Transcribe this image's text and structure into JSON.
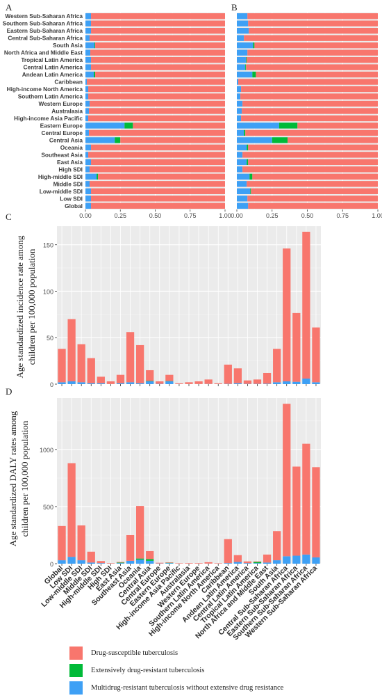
{
  "panels": {
    "a": "A",
    "b": "B",
    "c": "C",
    "d": "D"
  },
  "legend": [
    {
      "label": "Drug-susceptible tuberculosis",
      "color": "#f8766d"
    },
    {
      "label": "Extensively drug-resistant tuberculosis",
      "color": "#00ba38"
    },
    {
      "label": "Multidrug-resistant tuberculosis without extensive drug resistance",
      "color": "#3ea0f5"
    }
  ],
  "chart_data": [
    {
      "id": "A",
      "type": "bar",
      "orientation": "horizontal",
      "stacked": true,
      "categories": [
        "Western Sub-Saharan Africa",
        "Southern Sub-Saharan Africa",
        "Eastern Sub-Saharan Africa",
        "Central Sub-Saharan Africa",
        "South Asia",
        "North Africa and Middle East",
        "Tropical Latin America",
        "Central Latin America",
        "Andean Latin America",
        "Caribbean",
        "High-income North America",
        "Southern Latin America",
        "Western Europe",
        "Australasia",
        "High-income Asia Pacific",
        "Eastern Europe",
        "Central Europe",
        "Central Asia",
        "Oceania",
        "Southeast Asia",
        "East Asia",
        "High SDI",
        "High-middle SDI",
        "Middle SDI",
        "Low-middle SDI",
        "Low SDI",
        "Global"
      ],
      "series": [
        {
          "name": "Multidrug-resistant tuberculosis without extensive drug resistance",
          "values": [
            0.04,
            0.04,
            0.04,
            0.03,
            0.065,
            0.035,
            0.04,
            0.04,
            0.06,
            0.01,
            0.02,
            0.02,
            0.03,
            0.025,
            0.02,
            0.28,
            0.025,
            0.21,
            0.04,
            0.02,
            0.04,
            0.03,
            0.08,
            0.03,
            0.04,
            0.04,
            0.04
          ]
        },
        {
          "name": "Extensively drug-resistant tuberculosis",
          "values": [
            0,
            0,
            0,
            0,
            0.005,
            0,
            0,
            0,
            0.01,
            0,
            0,
            0,
            0,
            0,
            0,
            0.06,
            0,
            0.04,
            0,
            0,
            0,
            0,
            0.01,
            0,
            0,
            0,
            0
          ]
        },
        {
          "name": "Drug-susceptible tuberculosis",
          "values": [
            0.96,
            0.96,
            0.96,
            0.97,
            0.93,
            0.965,
            0.96,
            0.96,
            0.93,
            0.99,
            0.98,
            0.98,
            0.97,
            0.975,
            0.98,
            0.66,
            0.975,
            0.75,
            0.96,
            0.98,
            0.96,
            0.97,
            0.91,
            0.97,
            0.96,
            0.96,
            0.96
          ]
        }
      ],
      "x_ticks": [
        "0.00",
        "0.25",
        "0.50",
        "0.75",
        "1.00"
      ],
      "xlim": [
        0,
        1
      ]
    },
    {
      "id": "B",
      "type": "bar",
      "orientation": "horizontal",
      "stacked": true,
      "categories": [
        "Western Sub-Saharan Africa",
        "Southern Sub-Saharan Africa",
        "Eastern Sub-Saharan Africa",
        "Central Sub-Saharan Africa",
        "South Asia",
        "North Africa and Middle East",
        "Tropical Latin America",
        "Central Latin America",
        "Andean Latin America",
        "Caribbean",
        "High-income North America",
        "Southern Latin America",
        "Western Europe",
        "Australasia",
        "High-income Asia Pacific",
        "Eastern Europe",
        "Central Europe",
        "Central Asia",
        "Oceania",
        "Southeast Asia",
        "East Asia",
        "High SDI",
        "High-middle SDI",
        "Middle SDI",
        "Low-middle SDI",
        "Low SDI",
        "Global"
      ],
      "series": [
        {
          "name": "Multidrug-resistant tuberculosis without extensive drug resistance",
          "values": [
            0.075,
            0.08,
            0.085,
            0.05,
            0.115,
            0.075,
            0.065,
            0.06,
            0.11,
            0.01,
            0.03,
            0.025,
            0.04,
            0.035,
            0.03,
            0.3,
            0.05,
            0.25,
            0.07,
            0.04,
            0.07,
            0.04,
            0.09,
            0.07,
            0.095,
            0.075,
            0.08
          ]
        },
        {
          "name": "Extensively drug-resistant tuberculosis",
          "values": [
            0,
            0,
            0,
            0,
            0.01,
            0,
            0.005,
            0.005,
            0.025,
            0,
            0,
            0,
            0,
            0,
            0,
            0.13,
            0.01,
            0.11,
            0.01,
            0,
            0.01,
            0,
            0.02,
            0,
            0.005,
            0,
            0
          ]
        },
        {
          "name": "Drug-susceptible tuberculosis",
          "values": [
            0.925,
            0.92,
            0.915,
            0.95,
            0.875,
            0.925,
            0.93,
            0.935,
            0.865,
            0.99,
            0.97,
            0.975,
            0.96,
            0.965,
            0.97,
            0.57,
            0.94,
            0.64,
            0.92,
            0.96,
            0.92,
            0.96,
            0.89,
            0.93,
            0.9,
            0.925,
            0.92
          ]
        }
      ],
      "x_ticks": [
        "0.00",
        "0.25",
        "0.50",
        "0.75",
        "1.00"
      ],
      "xlim": [
        0,
        1
      ]
    },
    {
      "id": "C",
      "type": "bar",
      "stacked": true,
      "categories": [
        "Global",
        "Low SDI",
        "Low-middle SDI",
        "Middle SDI",
        "High-middle SDI",
        "High SDI",
        "East Asia",
        "Southeast Asia",
        "Oceania",
        "Central Asia",
        "Central Europe",
        "Eastern Europe",
        "High-income Asia Pacific",
        "Australasia",
        "Western Europe",
        "Southern Latin America",
        "High-income North America",
        "Caribbean",
        "Andean Latin America",
        "Central Latin America",
        "Tropical Latin America",
        "North Africa and Middle East",
        "South Asia",
        "Central Sub-Saharan Africa",
        "Eastern Sub-Saharan Africa",
        "Southern Sub-Saharan Africa",
        "Western Sub-Saharan Africa"
      ],
      "series": [
        {
          "name": "Multidrug-resistant tuberculosis without extensive drug resistance",
          "values": [
            2,
            3,
            2,
            1,
            1,
            0.1,
            1,
            2,
            1,
            3,
            0.3,
            3,
            0.1,
            0.1,
            0.1,
            0.2,
            0.1,
            0.3,
            1,
            0.3,
            0.3,
            0.5,
            2,
            3,
            2.5,
            6,
            2
          ]
        },
        {
          "name": "Extensively drug-resistant tuberculosis",
          "values": [
            0,
            0,
            0,
            0,
            0,
            0,
            0,
            0,
            0,
            0.4,
            0,
            0.3,
            0,
            0,
            0,
            0,
            0,
            0,
            0,
            0,
            0,
            0,
            0,
            0,
            0,
            0,
            0
          ]
        },
        {
          "name": "Drug-susceptible tuberculosis",
          "values": [
            36,
            67,
            41,
            27,
            7,
            2.9,
            9,
            54,
            41,
            11.6,
            2.7,
            6.7,
            0.9,
            1.9,
            2.9,
            4.8,
            0.9,
            20.7,
            16,
            3.7,
            4.7,
            11.5,
            36,
            143,
            74,
            158,
            59
          ]
        }
      ],
      "ylabel": "Age standardized incidence rate among children per 100,000 population",
      "y_ticks": [
        "0",
        "50",
        "100",
        "150"
      ],
      "ylim": [
        0,
        170
      ]
    },
    {
      "id": "D",
      "type": "bar",
      "stacked": true,
      "categories": [
        "Global",
        "Low SDI",
        "Low-middle SDI",
        "Middle SDI",
        "High-middle SDI",
        "High SDI",
        "East Asia",
        "Southeast Asia",
        "Oceania",
        "Central Asia",
        "Central Europe",
        "Eastern Europe",
        "High-income Asia Pacific",
        "Australasia",
        "Western Europe",
        "Southern Latin America",
        "High-income North America",
        "Caribbean",
        "Andean Latin America",
        "Central Latin America",
        "Tropical Latin America",
        "North Africa and Middle East",
        "South Asia",
        "Central Sub-Saharan Africa",
        "Eastern Sub-Saharan Africa",
        "Southern Sub-Saharan Africa",
        "Western Sub-Saharan Africa"
      ],
      "series": [
        {
          "name": "Multidrug-resistant tuberculosis without extensive drug resistance",
          "values": [
            30,
            60,
            30,
            10,
            5,
            1,
            5,
            25,
            35,
            25,
            2,
            5,
            0.5,
            0.5,
            0.5,
            1,
            0.5,
            5,
            15,
            5,
            5,
            10,
            30,
            65,
            70,
            80,
            55
          ]
        },
        {
          "name": "Extensively drug-resistant tuberculosis",
          "values": [
            0,
            0,
            0,
            0,
            0,
            0,
            5,
            0,
            10,
            15,
            0,
            3,
            0,
            0,
            0,
            0,
            0,
            0,
            0,
            0,
            10,
            0,
            0,
            0,
            0,
            0,
            0
          ]
        },
        {
          "name": "Drug-susceptible tuberculosis",
          "values": [
            300,
            820,
            305,
            95,
            18,
            4,
            5,
            225,
            460,
            70,
            6,
            4,
            3.5,
            4.5,
            4.5,
            12,
            3.5,
            210,
            60,
            15,
            5,
            70,
            255,
            1335,
            780,
            970,
            790
          ]
        }
      ],
      "ylabel": "Age standardized DALY rates among children per 100,000 population",
      "y_ticks": [
        "0",
        "500",
        "1000"
      ],
      "ylim": [
        0,
        1450
      ]
    }
  ]
}
